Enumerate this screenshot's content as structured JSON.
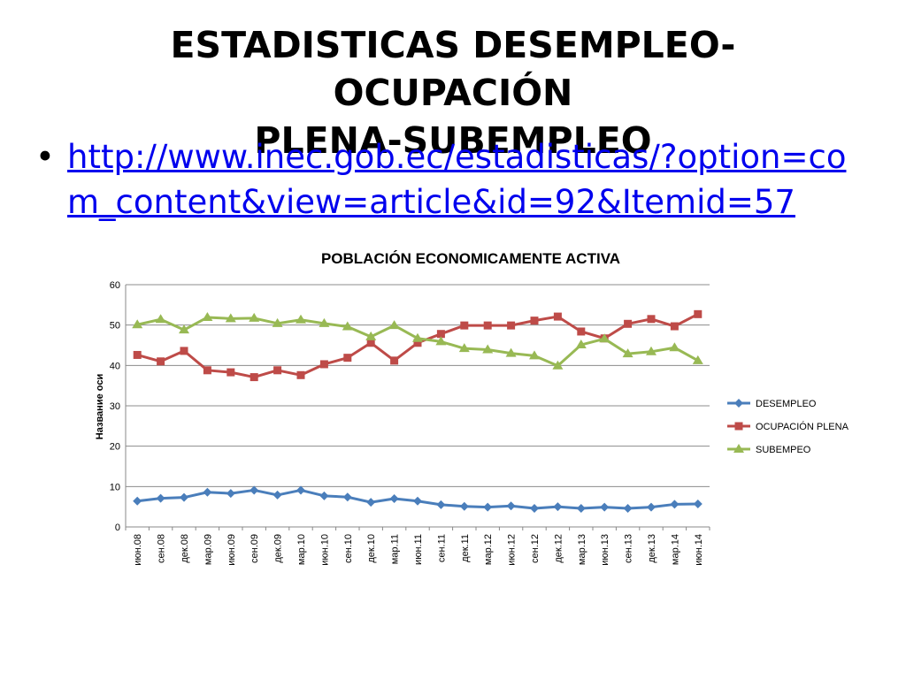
{
  "slide": {
    "title_line1": "ESTADISTICAS DESEMPLEO-OCUPACIÓN",
    "title_line2": "PLENA-SUBEMPLEO",
    "bullet": "•",
    "link_text": "http://www.inec.gob.ec/estadisticas/?option=com_content&view=article&id=92&Itemid=57"
  },
  "chart_data": {
    "type": "line",
    "title": "POBLACIÓN ECONOMICAMENTE ACTIVA",
    "ylabel": "Название оси",
    "xlabel": "",
    "ylim": [
      0,
      60
    ],
    "yticks": [
      0,
      10,
      20,
      30,
      40,
      50,
      60
    ],
    "grid": true,
    "legend": "right",
    "categories": [
      "июн.08",
      "сен.08",
      "дек.08",
      "мар.09",
      "июн.09",
      "сен.09",
      "дек.09",
      "мар.10",
      "июн.10",
      "сен.10",
      "дек.10",
      "мар.11",
      "июн.11",
      "сен.11",
      "дек.11",
      "мар.12",
      "июн.12",
      "сен.12",
      "дек.12",
      "мар.13",
      "июн.13",
      "сен.13",
      "дек.13",
      "мар.14",
      "июн.14"
    ],
    "series": [
      {
        "name": "DESEMPLEO",
        "color": "#4a7ebb",
        "marker": "diamond",
        "values": [
          6.4,
          7.1,
          7.3,
          8.6,
          8.3,
          9.1,
          7.9,
          9.1,
          7.7,
          7.4,
          6.1,
          7.0,
          6.4,
          5.5,
          5.1,
          4.9,
          5.2,
          4.6,
          5.0,
          4.6,
          4.9,
          4.6,
          4.9,
          5.6,
          5.7
        ]
      },
      {
        "name": "OCUPACIÓN PLENA",
        "color": "#be4b48",
        "marker": "square",
        "values": [
          42.6,
          41.0,
          43.6,
          38.8,
          38.3,
          37.1,
          38.8,
          37.6,
          40.3,
          41.9,
          45.6,
          41.2,
          45.6,
          47.8,
          49.9,
          49.9,
          49.9,
          51.1,
          52.1,
          48.4,
          46.7,
          50.3,
          51.5,
          49.7,
          52.7
        ]
      },
      {
        "name": "SUBEMPEO",
        "color": "#98b954",
        "marker": "triangle",
        "values": [
          50.1,
          51.4,
          48.8,
          51.9,
          51.6,
          51.7,
          50.4,
          51.3,
          50.4,
          49.6,
          47.1,
          49.9,
          46.7,
          45.9,
          44.2,
          43.9,
          43.0,
          42.4,
          39.9,
          45.1,
          46.6,
          42.9,
          43.4,
          44.4,
          41.2
        ]
      }
    ]
  }
}
